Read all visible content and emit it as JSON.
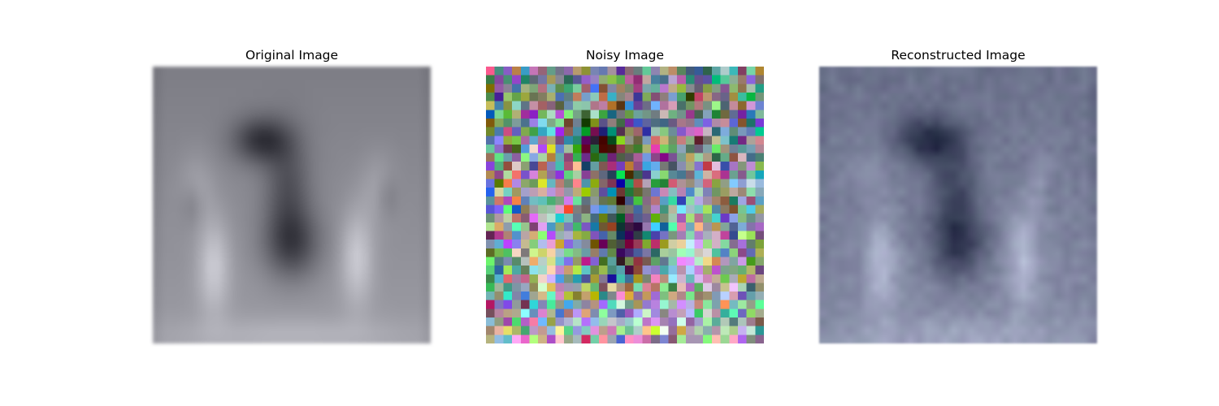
{
  "figure": {
    "panels": [
      {
        "id": "original",
        "title": "Original Image",
        "mode": "smooth"
      },
      {
        "id": "noisy",
        "title": "Noisy Image",
        "mode": "noisy"
      },
      {
        "id": "reconstructed",
        "title": "Reconstructed Image",
        "mode": "recon"
      }
    ],
    "grid_size": 32
  }
}
